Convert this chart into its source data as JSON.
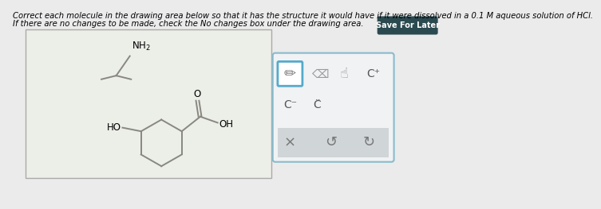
{
  "title_line1": "Correct each molecule in the drawing area below so that it has the structure it would have if it were dissolved in a 0.1 M aqueous solution of HCl.",
  "title_line2": "If there are no changes to be made, check the No changes box under the drawing area.",
  "bg_color": "#ebebeb",
  "drawing_area_color": "#e8e8e4",
  "drawing_border_color": "#aaaaaa",
  "line_color": "#888880",
  "toolbar_bg": "#f0f2f4",
  "toolbar_border": "#88bbcc",
  "pencil_box_color": "#55aacc",
  "bottom_bar_color": "#d0d5d8",
  "save_btn_color": "#2a4a50",
  "font_size_title": 7.2,
  "font_size_mol": 8.5
}
